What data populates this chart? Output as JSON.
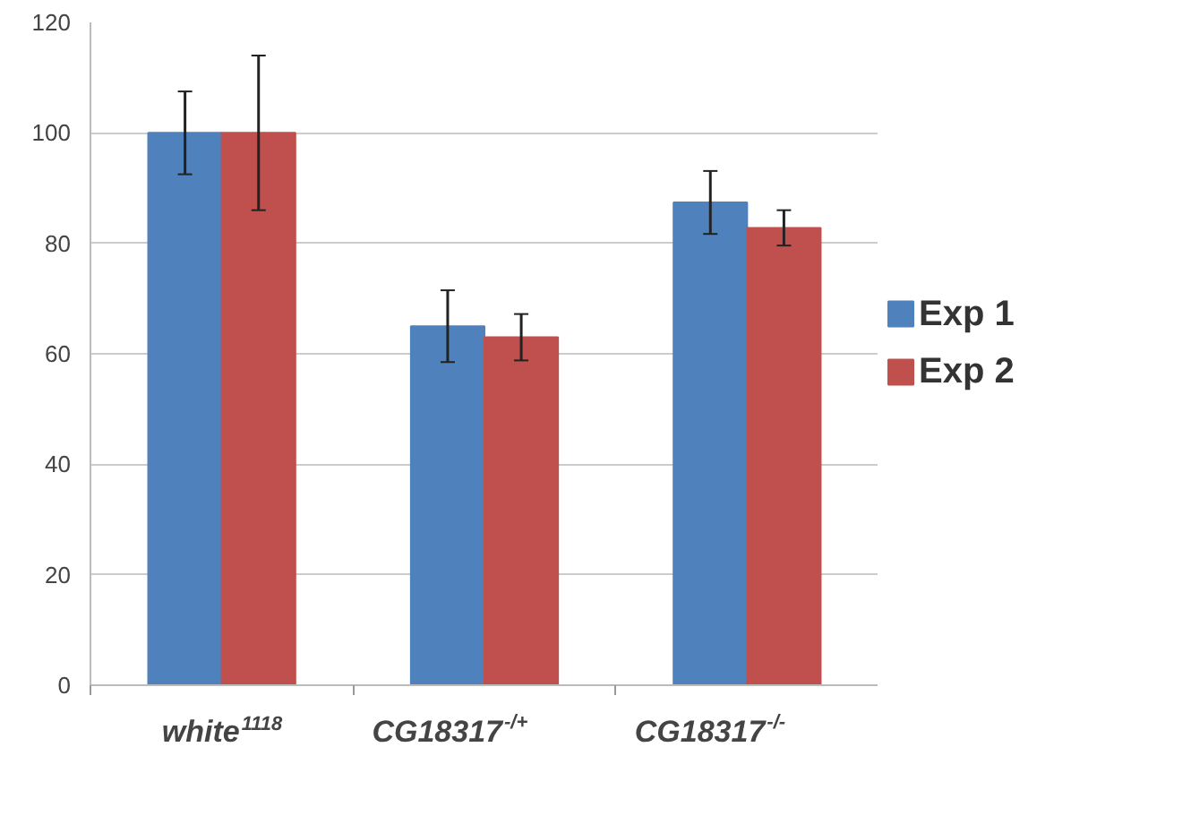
{
  "chart_data": {
    "type": "bar",
    "categories": [
      "white$^{1118}$",
      "CG18317$^{-/+}$",
      "CG18317$^{-/-}$"
    ],
    "series": [
      {
        "name": "Exp 1",
        "color": "#4f81bd",
        "values": [
          100,
          65,
          87.4
        ],
        "errors": [
          7.5,
          6.5,
          5.7
        ]
      },
      {
        "name": "Exp 2",
        "color": "#c0504d",
        "values": [
          100,
          63,
          82.8
        ],
        "errors": [
          14,
          4.2,
          3.2
        ]
      }
    ],
    "ylim": [
      0,
      120
    ],
    "yticks": [
      0,
      20,
      40,
      60,
      80,
      100,
      120
    ],
    "grid": "y",
    "legend": "right"
  }
}
